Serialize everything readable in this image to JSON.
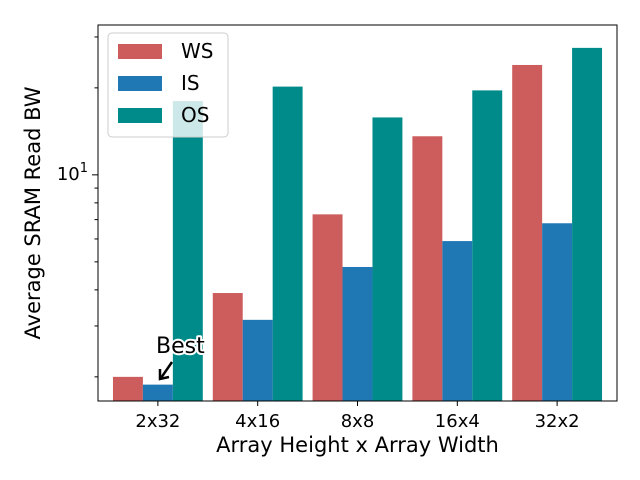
{
  "chart_data": {
    "type": "bar",
    "categories": [
      "2x32",
      "4x16",
      "8x8",
      "16x4",
      "32x2"
    ],
    "series": [
      {
        "name": "WS",
        "color": "#cd5c5c",
        "values": [
          2.0,
          3.9,
          7.3,
          13.6,
          24.0
        ]
      },
      {
        "name": "IS",
        "color": "#1f77b4",
        "values": [
          1.88,
          3.15,
          4.8,
          5.9,
          6.8
        ]
      },
      {
        "name": "OS",
        "color": "#008b8b",
        "values": [
          18.0,
          20.2,
          15.8,
          19.6,
          27.5
        ]
      }
    ],
    "xlabel": "Array Height x Array Width",
    "ylabel": "Average SRAM Read BW",
    "yscale": "log",
    "ylim": [
      1.65,
      33
    ],
    "ytick_label": {
      "base": "10",
      "exponent": "1",
      "value": 10
    },
    "minor_yticks": [
      2,
      3,
      4,
      5,
      6,
      7,
      8,
      9,
      20,
      30
    ],
    "legend_position": "upper-left",
    "annotation": {
      "text": "Best",
      "target_category": "2x32",
      "target_series": "IS"
    }
  }
}
